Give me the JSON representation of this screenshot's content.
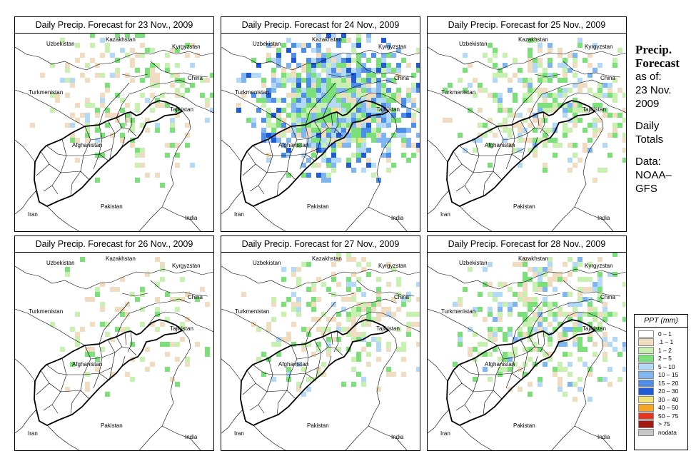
{
  "panels": [
    {
      "title": "Daily Precip. Forecast for  23 Nov., 2009",
      "intensity": "light"
    },
    {
      "title": "Daily Precip. Forecast for  24 Nov., 2009",
      "intensity": "heavy"
    },
    {
      "title": "Daily Precip. Forecast for  25 Nov., 2009",
      "intensity": "moderate"
    },
    {
      "title": "Daily Precip. Forecast for  26 Nov., 2009",
      "intensity": "verylight"
    },
    {
      "title": "Daily Precip. Forecast for  27 Nov., 2009",
      "intensity": "light"
    },
    {
      "title": "Daily Precip. Forecast for  28 Nov., 2009",
      "intensity": "moderate"
    }
  ],
  "map_labels": {
    "uzbekistan": "Uzbekistan",
    "kazakhstan": "Kazakhstan",
    "kyrgyzstan": "Kyrgyzstan",
    "china": "China",
    "turkmenistan": "Turkmenistan",
    "tajikistan": "Tajikistan",
    "afghanistan": "Afghanistan",
    "iran": "Iran",
    "pakistan": "Pakistan",
    "india": "India"
  },
  "side": {
    "heading1": "Precip.",
    "heading2": "Forecast",
    "asof": "as of:",
    "date1": "23 Nov.",
    "date2": "2009",
    "totals1": "Daily",
    "totals2": "Totals",
    "data1": "Data:",
    "data2": "NOAA–",
    "data3": "GFS"
  },
  "legend": {
    "title": "PPT (mm)",
    "items": [
      {
        "label": "0 – 1",
        "color": "#ffffff"
      },
      {
        "label": ".1 – 1",
        "color": "#f0dcc0"
      },
      {
        "label": "1 – 2",
        "color": "#c8f0b0"
      },
      {
        "label": "2 – 5",
        "color": "#7be07a"
      },
      {
        "label": "5 – 10",
        "color": "#b4d9f7"
      },
      {
        "label": "10 – 15",
        "color": "#7fb6f0"
      },
      {
        "label": "15 – 20",
        "color": "#4d8ee8"
      },
      {
        "label": "20 – 30",
        "color": "#1f5bd6"
      },
      {
        "label": "30 – 40",
        "color": "#f3e27a"
      },
      {
        "label": "40 – 50",
        "color": "#f6a623"
      },
      {
        "label": "50 – 75",
        "color": "#e8341c"
      },
      {
        "label": "> 75",
        "color": "#a31a12"
      },
      {
        "label": "nodata",
        "color": "#c8c8c8"
      }
    ]
  }
}
